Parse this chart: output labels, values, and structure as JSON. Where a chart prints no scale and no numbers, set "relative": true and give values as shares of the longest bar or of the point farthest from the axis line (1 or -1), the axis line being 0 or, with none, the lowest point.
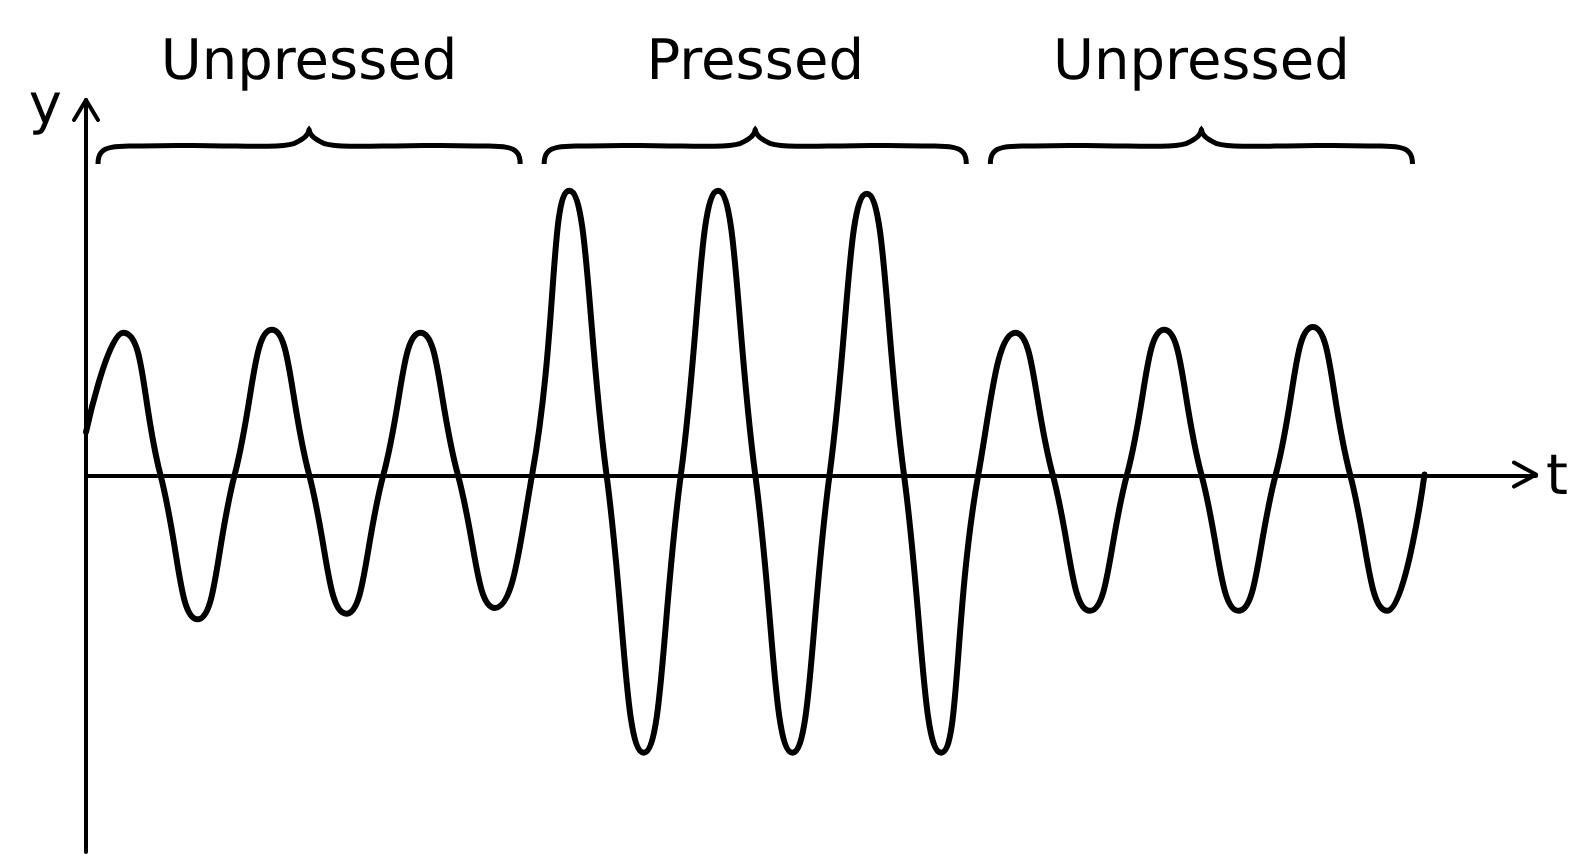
{
  "chart_data": {
    "type": "line",
    "xlabel": "t",
    "ylabel": "y",
    "annotations": [
      "Unpressed",
      "Pressed",
      "Unpressed"
    ],
    "categories": [
      null,
      null,
      null,
      null,
      null,
      null,
      null,
      null,
      null,
      null,
      null,
      null,
      null,
      null,
      null,
      null,
      null,
      null,
      null,
      null,
      null,
      null,
      null,
      null,
      null,
      null,
      null,
      null,
      null,
      null,
      null,
      null,
      null,
      null,
      null,
      null,
      null
    ],
    "values": [
      0.15,
      0.5,
      0,
      -0.51,
      0,
      0.51,
      0,
      -0.49,
      0,
      0.5,
      0,
      -0.47,
      0,
      1,
      0,
      -0.98,
      0,
      1,
      0,
      -0.98,
      0,
      0.99,
      0,
      -0.98,
      0,
      0.5,
      0,
      -0.48,
      0,
      0.51,
      0,
      -0.48,
      0,
      0.52,
      0,
      -0.48,
      0
    ],
    "color": "#000000",
    "relative": true,
    "marker": "none",
    "line_style": "solid"
  }
}
